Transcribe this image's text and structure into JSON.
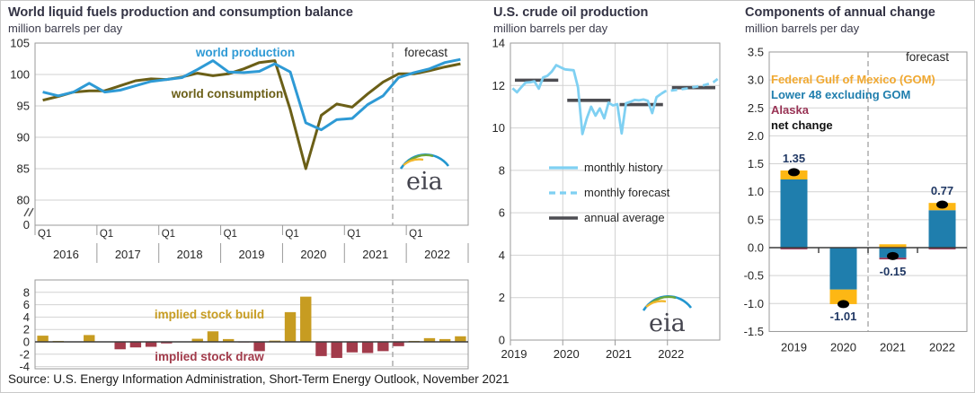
{
  "source_note": "Source: U.S. Energy Information Administration, Short-Term Energy Outlook, November 2021",
  "logo_text": "eia",
  "colors": {
    "title": "#333344",
    "text": "#262626",
    "gridline": "#d2d2d2",
    "frame": "#9a9a9a",
    "dashed_divider": "#999999",
    "production": "#2e9ad5",
    "consumption": "#6b5f17",
    "build": "#c79c21",
    "draw": "#a23b4b",
    "history": "#7fd0f2",
    "forecast_line": "#7fd0f2",
    "annual": "#4d4d52",
    "gom": "#fdb714",
    "gom_text": "#f0a830",
    "lower48": "#1f7ead",
    "alaska": "#993355",
    "net": "#000000",
    "value_label": "#203864",
    "zero_line": "#3c3c3c",
    "logo": "#44444e",
    "logo_blue": "#2196cf",
    "logo_green": "#6aa63c",
    "logo_yellow": "#f2b72c"
  },
  "panels": {
    "world_balance": {
      "title": "World liquid fuels production and consumption balance",
      "subtitle": "million barrels  per day",
      "production_label": "world production",
      "consumption_label": "world consumption",
      "forecast_label": "forecast",
      "build_label": "implied stock  build",
      "draw_label": "implied stock draw"
    },
    "us_crude": {
      "title": "U.S. crude oil production",
      "subtitle": "million barrels  per day",
      "legend": [
        "monthly history",
        "monthly forecast",
        "annual average"
      ]
    },
    "components": {
      "title": "Components of annual change",
      "subtitle": "million barrels  per day",
      "forecast_label": "forecast",
      "legend": [
        "Federal Gulf  of Mexico (GOM)",
        "Lower 48 excluding GOM",
        "Alaska",
        "net change"
      ]
    }
  },
  "chart_data": [
    {
      "id": "world_balance_lines",
      "type": "line",
      "title": "World liquid fuels production and consumption balance",
      "ylabel": "million barrels per day",
      "x_unit": "quarter",
      "years": [
        2016,
        2017,
        2018,
        2019,
        2020,
        2021,
        2022
      ],
      "quarter_label": "Q1",
      "yticks": [
        105,
        100,
        95,
        90,
        85,
        80
      ],
      "axis_break_zero_label": "0",
      "forecast_divider_after": "2021 Q3",
      "series": [
        {
          "name": "world production",
          "values": [
            97.2,
            96.6,
            97.2,
            98.6,
            97.2,
            97.5,
            98.2,
            98.9,
            99.2,
            99.5,
            100.8,
            102.2,
            100.4,
            100.3,
            100.5,
            101.7,
            100.4,
            92.3,
            91.2,
            92.8,
            93.0,
            95.2,
            96.6,
            99.5,
            100.3,
            100.9,
            101.9,
            102.4
          ]
        },
        {
          "name": "world consumption",
          "values": [
            95.9,
            96.5,
            97.2,
            97.4,
            97.4,
            98.2,
            99.0,
            99.3,
            99.2,
            99.6,
            100.2,
            99.8,
            100.1,
            100.9,
            101.9,
            102.2,
            94.4,
            85.0,
            93.5,
            95.3,
            94.8,
            96.9,
            98.8,
            100.1,
            100.1,
            100.6,
            101.2,
            101.7
          ]
        }
      ]
    },
    {
      "id": "implied_stock_balance",
      "type": "bar",
      "title": "implied stock build / draw",
      "x_unit": "quarter",
      "years": [
        2016,
        2017,
        2018,
        2019,
        2020,
        2021,
        2022
      ],
      "yticks": [
        8,
        6,
        4,
        2,
        0,
        -2,
        -4
      ],
      "positive_label": "implied stock  build",
      "negative_label": "implied stock draw",
      "values": [
        1.0,
        0.15,
        0.0,
        1.1,
        0.0,
        -1.2,
        -0.9,
        -0.8,
        -0.25,
        0.0,
        0.5,
        1.7,
        0.45,
        -0.1,
        -1.5,
        0.2,
        4.8,
        7.3,
        -2.3,
        -2.6,
        -1.7,
        -1.8,
        -1.5,
        -0.7,
        0.15,
        0.6,
        0.45,
        0.9
      ]
    },
    {
      "id": "us_crude_production",
      "type": "line",
      "title": "U.S. crude oil production",
      "ylabel": "million barrels per day",
      "x_unit": "month",
      "years": [
        2019,
        2020,
        2021,
        2022
      ],
      "yticks": [
        14,
        12,
        10,
        8,
        6,
        4,
        2,
        0
      ],
      "legend": [
        "monthly history",
        "monthly forecast",
        "annual average"
      ],
      "monthly_history": [
        11.87,
        11.68,
        11.92,
        12.14,
        12.15,
        12.2,
        11.85,
        12.38,
        12.46,
        12.66,
        12.96,
        12.86,
        12.76,
        12.74,
        12.72,
        11.91,
        9.71,
        10.44,
        11.0,
        10.58,
        10.92,
        10.45,
        11.19,
        11.06,
        11.12,
        9.74,
        11.16,
        11.23,
        11.32,
        11.3,
        11.34,
        11.28,
        10.7,
        11.45,
        11.6
      ],
      "monthly_forecast": [
        11.6,
        11.73,
        11.75,
        11.78,
        11.8,
        11.83,
        11.86,
        11.9,
        11.94,
        11.98,
        12.02,
        12.08,
        12.15,
        12.31
      ],
      "annual_average": [
        12.25,
        11.3,
        11.1,
        11.9
      ]
    },
    {
      "id": "components_of_annual_change",
      "type": "stacked_bar",
      "title": "Components of annual change",
      "ylabel": "million barrels per day",
      "categories": [
        "2019",
        "2020",
        "2021",
        "2022"
      ],
      "yticks": [
        3.5,
        3.0,
        2.5,
        2.0,
        1.5,
        1.0,
        0.5,
        0.0,
        -0.5,
        -1.0,
        -1.5
      ],
      "forecast_divider_after": "2020",
      "series": [
        {
          "name": "Lower 48 excluding GOM",
          "values": [
            1.22,
            -0.75,
            -0.18,
            0.67
          ]
        },
        {
          "name": "Federal Gulf of Mexico (GOM)",
          "values": [
            0.16,
            -0.26,
            0.06,
            0.13
          ]
        },
        {
          "name": "Alaska",
          "values": [
            -0.03,
            0.0,
            -0.03,
            -0.03
          ]
        }
      ],
      "net_change": [
        1.35,
        -1.01,
        -0.15,
        0.77
      ]
    }
  ]
}
